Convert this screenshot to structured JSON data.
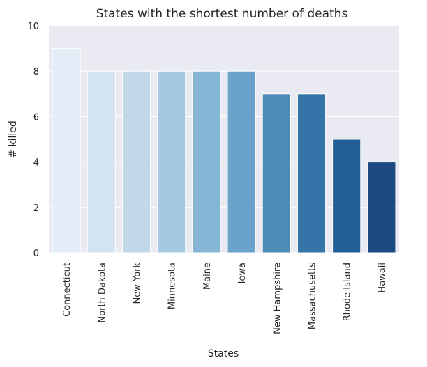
{
  "chart_data": {
    "type": "bar",
    "title": "States with the shortest number of deaths",
    "xlabel": "States",
    "ylabel": "# killed",
    "categories": [
      "Connecticut",
      "North Dakota",
      "New York",
      "Minnesota",
      "Maine",
      "Iowa",
      "New Hampshire",
      "Massachusetts",
      "Rhode Island",
      "Hawaii"
    ],
    "values": [
      9,
      8,
      8,
      8,
      8,
      8,
      7,
      7,
      5,
      4
    ],
    "ylim": [
      0,
      10
    ],
    "yticks": [
      0,
      2,
      4,
      6,
      8,
      10
    ],
    "grid": true,
    "colors": [
      "#e3edf7",
      "#d4e3f1",
      "#c1d8e9",
      "#a5c9e0",
      "#86b6d6",
      "#69a2cb",
      "#4e8ab6",
      "#3574a8",
      "#235d95",
      "#1a4a80"
    ],
    "background": "#eaeaf2"
  }
}
